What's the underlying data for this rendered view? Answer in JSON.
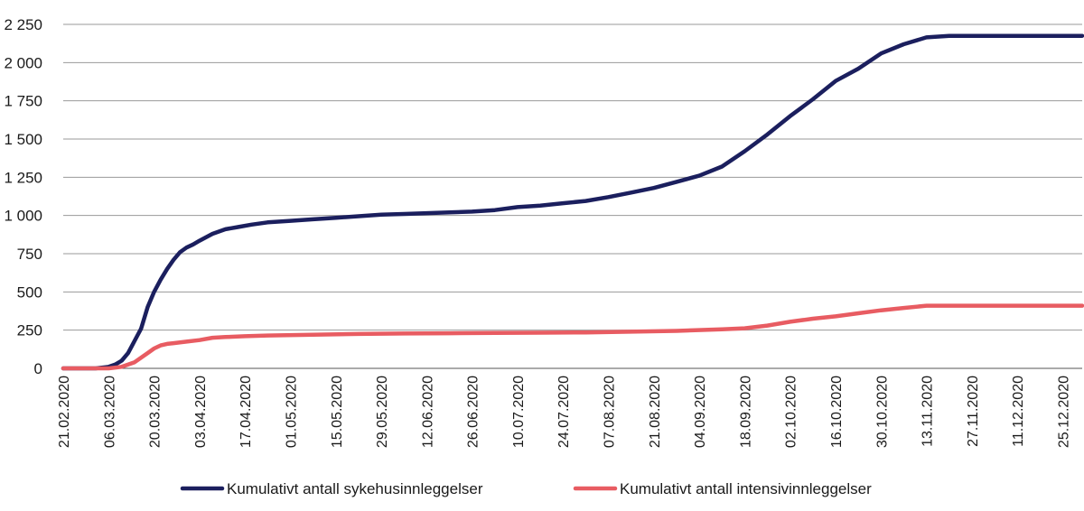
{
  "chart_data": {
    "type": "line",
    "title": "",
    "xlabel": "",
    "ylabel": "",
    "ylim": [
      0,
      2250
    ],
    "grid": true,
    "legend_position": "bottom",
    "yticks": [
      0,
      250,
      500,
      750,
      1000,
      1250,
      1500,
      1750,
      2000,
      2250
    ],
    "ytick_labels": [
      "0",
      "250",
      "500",
      "750",
      "1 000",
      "1 250",
      "1 500",
      "1 750",
      "2 000",
      "2 250"
    ],
    "xticks": [
      "21.02.2020",
      "06.03.2020",
      "20.03.2020",
      "03.04.2020",
      "17.04.2020",
      "01.05.2020",
      "15.05.2020",
      "29.05.2020",
      "12.06.2020",
      "26.06.2020",
      "10.07.2020",
      "24.07.2020",
      "07.08.2020",
      "21.08.2020",
      "04.09.2020",
      "18.09.2020",
      "02.10.2020",
      "16.10.2020",
      "30.10.2020",
      "13.11.2020",
      "27.11.2020",
      "11.12.2020",
      "25.12.2020"
    ],
    "x_days_range": [
      0,
      314
    ],
    "series": [
      {
        "name": "Kumulativt antall sykehusinnleggelser",
        "color": "#1b1f5e",
        "x_days": [
          0,
          10,
          14,
          16,
          18,
          20,
          22,
          24,
          26,
          28,
          30,
          32,
          34,
          36,
          38,
          40,
          42,
          46,
          50,
          54,
          58,
          63,
          70,
          77,
          84,
          91,
          98,
          105,
          112,
          119,
          126,
          133,
          140,
          147,
          154,
          161,
          168,
          175,
          182,
          189,
          196,
          203,
          210,
          217,
          224,
          231,
          238,
          245,
          252,
          259,
          266,
          273,
          280,
          287,
          294,
          301,
          308,
          312,
          314
        ],
        "values": [
          0,
          0,
          10,
          25,
          50,
          100,
          180,
          260,
          400,
          500,
          580,
          650,
          710,
          760,
          790,
          810,
          835,
          880,
          910,
          925,
          940,
          955,
          965,
          975,
          985,
          995,
          1005,
          1010,
          1015,
          1020,
          1025,
          1035,
          1055,
          1065,
          1080,
          1095,
          1120,
          1150,
          1180,
          1220,
          1260,
          1320,
          1420,
          1530,
          1650,
          1760,
          1880,
          1960,
          2060,
          2120,
          2165,
          2175,
          2175,
          2175,
          2175,
          2175,
          2175,
          2175,
          2175
        ]
      },
      {
        "name": "Kumulativt antall intensivinnleggelser",
        "color": "#e85c62",
        "x_days": [
          0,
          14,
          18,
          22,
          26,
          28,
          30,
          32,
          34,
          38,
          42,
          46,
          50,
          56,
          63,
          77,
          91,
          105,
          119,
          133,
          147,
          161,
          175,
          189,
          203,
          210,
          217,
          224,
          231,
          238,
          245,
          252,
          259,
          266,
          273,
          280,
          287,
          294,
          301,
          308,
          312,
          314
        ],
        "values": [
          0,
          0,
          10,
          40,
          100,
          130,
          150,
          160,
          165,
          175,
          185,
          200,
          205,
          210,
          215,
          220,
          225,
          228,
          230,
          232,
          233,
          235,
          240,
          245,
          255,
          262,
          280,
          305,
          325,
          340,
          360,
          380,
          395,
          410,
          410,
          410,
          410,
          410,
          410,
          410,
          410,
          410
        ]
      }
    ]
  }
}
